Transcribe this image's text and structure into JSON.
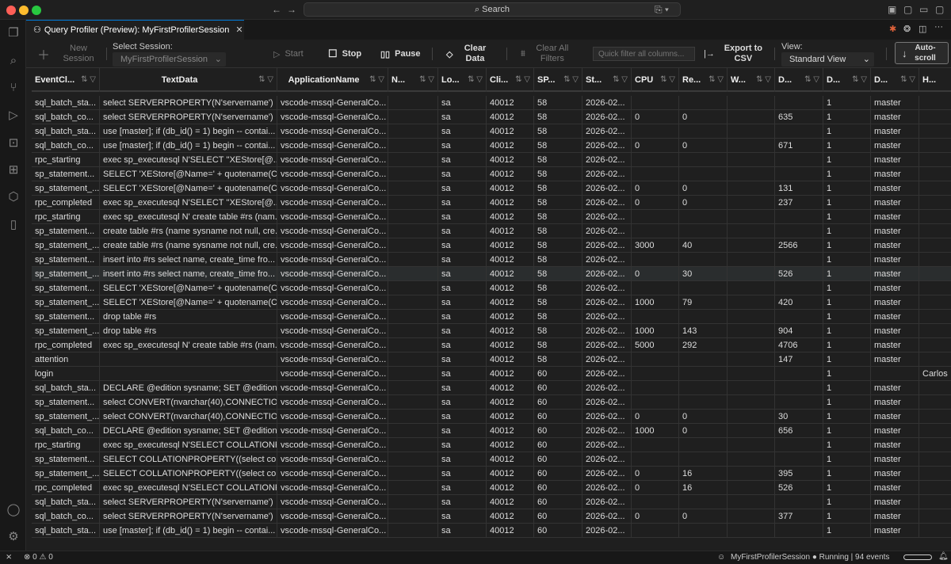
{
  "window": {
    "search_label": "Search"
  },
  "tab": {
    "title": "Query Profiler (Preview): MyFirstProfilerSession"
  },
  "toolbar": {
    "new_session": "New Session",
    "select_session_label": "Select Session:",
    "session_value": "MyFirstProfilerSession",
    "start": "Start",
    "stop": "Stop",
    "pause": "Pause",
    "clear_data": "Clear Data",
    "clear_filters": "Clear All Filters",
    "quick_filter_placeholder": "Quick filter all columns...",
    "export": "Export to CSV",
    "view_label": "View:",
    "view_value": "Standard View",
    "autoscroll": "Auto-scroll"
  },
  "columns": [
    "EventCl...",
    "TextData",
    "ApplicationName",
    "N...",
    "Lo...",
    "Cli...",
    "SP...",
    "St...",
    "CPU",
    "Re...",
    "W...",
    "D...",
    "D...",
    "D...",
    "H..."
  ],
  "rows": [
    [
      "sql_batch_sta...",
      "select SERVERPROPERTY(N'servername')",
      "vscode-mssql-GeneralCo...",
      "",
      "sa",
      "40012",
      "58",
      "2026-02...",
      "",
      "",
      "",
      "",
      "1",
      "master",
      ""
    ],
    [
      "sql_batch_co...",
      "select SERVERPROPERTY(N'servername')",
      "vscode-mssql-GeneralCo...",
      "",
      "sa",
      "40012",
      "58",
      "2026-02...",
      "0",
      "0",
      "",
      "635",
      "1",
      "master",
      ""
    ],
    [
      "sql_batch_sta...",
      "use [master]; if (db_id() = 1) begin -- contai...",
      "vscode-mssql-GeneralCo...",
      "",
      "sa",
      "40012",
      "58",
      "2026-02...",
      "",
      "",
      "",
      "",
      "1",
      "master",
      ""
    ],
    [
      "sql_batch_co...",
      "use [master]; if (db_id() = 1) begin -- contai...",
      "vscode-mssql-GeneralCo...",
      "",
      "sa",
      "40012",
      "58",
      "2026-02...",
      "0",
      "0",
      "",
      "671",
      "1",
      "master",
      ""
    ],
    [
      "rpc_starting",
      "exec sp_executesql N'SELECT ''XEStore[@...",
      "vscode-mssql-GeneralCo...",
      "",
      "sa",
      "40012",
      "58",
      "2026-02...",
      "",
      "",
      "",
      "",
      "1",
      "master",
      ""
    ],
    [
      "sp_statement...",
      "SELECT 'XEStore[@Name=' + quotename(C...",
      "vscode-mssql-GeneralCo...",
      "",
      "sa",
      "40012",
      "58",
      "2026-02...",
      "",
      "",
      "",
      "",
      "1",
      "master",
      ""
    ],
    [
      "sp_statement_...",
      "SELECT 'XEStore[@Name=' + quotename(C...",
      "vscode-mssql-GeneralCo...",
      "",
      "sa",
      "40012",
      "58",
      "2026-02...",
      "0",
      "0",
      "",
      "131",
      "1",
      "master",
      ""
    ],
    [
      "rpc_completed",
      "exec sp_executesql N'SELECT ''XEStore[@...",
      "vscode-mssql-GeneralCo...",
      "",
      "sa",
      "40012",
      "58",
      "2026-02...",
      "0",
      "0",
      "",
      "237",
      "1",
      "master",
      ""
    ],
    [
      "rpc_starting",
      "exec sp_executesql N' create table #rs (nam...",
      "vscode-mssql-GeneralCo...",
      "",
      "sa",
      "40012",
      "58",
      "2026-02...",
      "",
      "",
      "",
      "",
      "1",
      "master",
      ""
    ],
    [
      "sp_statement...",
      "create table #rs (name sysname not null, cre...",
      "vscode-mssql-GeneralCo...",
      "",
      "sa",
      "40012",
      "58",
      "2026-02...",
      "",
      "",
      "",
      "",
      "1",
      "master",
      ""
    ],
    [
      "sp_statement_...",
      "create table #rs (name sysname not null, cre...",
      "vscode-mssql-GeneralCo...",
      "",
      "sa",
      "40012",
      "58",
      "2026-02...",
      "3000",
      "40",
      "",
      "2566",
      "1",
      "master",
      ""
    ],
    [
      "sp_statement...",
      "insert into #rs select name, create_time fro...",
      "vscode-mssql-GeneralCo...",
      "",
      "sa",
      "40012",
      "58",
      "2026-02...",
      "",
      "",
      "",
      "",
      "1",
      "master",
      ""
    ],
    [
      "sp_statement_...",
      "insert into #rs select name, create_time fro...",
      "vscode-mssql-GeneralCo...",
      "",
      "sa",
      "40012",
      "58",
      "2026-02...",
      "0",
      "30",
      "",
      "526",
      "1",
      "master",
      ""
    ],
    [
      "sp_statement...",
      "SELECT 'XEStore[@Name=' + quotename(C...",
      "vscode-mssql-GeneralCo...",
      "",
      "sa",
      "40012",
      "58",
      "2026-02...",
      "",
      "",
      "",
      "",
      "1",
      "master",
      ""
    ],
    [
      "sp_statement_...",
      "SELECT 'XEStore[@Name=' + quotename(C...",
      "vscode-mssql-GeneralCo...",
      "",
      "sa",
      "40012",
      "58",
      "2026-02...",
      "1000",
      "79",
      "",
      "420",
      "1",
      "master",
      ""
    ],
    [
      "sp_statement...",
      "drop table #rs",
      "vscode-mssql-GeneralCo...",
      "",
      "sa",
      "40012",
      "58",
      "2026-02...",
      "",
      "",
      "",
      "",
      "1",
      "master",
      ""
    ],
    [
      "sp_statement_...",
      "drop table #rs",
      "vscode-mssql-GeneralCo...",
      "",
      "sa",
      "40012",
      "58",
      "2026-02...",
      "1000",
      "143",
      "",
      "904",
      "1",
      "master",
      ""
    ],
    [
      "rpc_completed",
      "exec sp_executesql N' create table #rs (nam...",
      "vscode-mssql-GeneralCo...",
      "",
      "sa",
      "40012",
      "58",
      "2026-02...",
      "5000",
      "292",
      "",
      "4706",
      "1",
      "master",
      ""
    ],
    [
      "attention",
      "",
      "vscode-mssql-GeneralCo...",
      "",
      "sa",
      "40012",
      "58",
      "2026-02...",
      "",
      "",
      "",
      "147",
      "1",
      "master",
      ""
    ],
    [
      "login",
      "",
      "vscode-mssql-GeneralCo...",
      "",
      "sa",
      "40012",
      "60",
      "2026-02...",
      "",
      "",
      "",
      "",
      "1",
      "",
      "Carlos"
    ],
    [
      "sql_batch_sta...",
      "DECLARE @edition sysname; SET @edition ...",
      "vscode-mssql-GeneralCo...",
      "",
      "sa",
      "40012",
      "60",
      "2026-02...",
      "",
      "",
      "",
      "",
      "1",
      "master",
      ""
    ],
    [
      "sp_statement...",
      "select CONVERT(nvarchar(40),CONNECTIO...",
      "vscode-mssql-GeneralCo...",
      "",
      "sa",
      "40012",
      "60",
      "2026-02...",
      "",
      "",
      "",
      "",
      "1",
      "master",
      ""
    ],
    [
      "sp_statement_...",
      "select CONVERT(nvarchar(40),CONNECTIO...",
      "vscode-mssql-GeneralCo...",
      "",
      "sa",
      "40012",
      "60",
      "2026-02...",
      "0",
      "0",
      "",
      "30",
      "1",
      "master",
      ""
    ],
    [
      "sql_batch_co...",
      "DECLARE @edition sysname; SET @edition ...",
      "vscode-mssql-GeneralCo...",
      "",
      "sa",
      "40012",
      "60",
      "2026-02...",
      "1000",
      "0",
      "",
      "656",
      "1",
      "master",
      ""
    ],
    [
      "rpc_starting",
      "exec sp_executesql N'SELECT COLLATIONP...",
      "vscode-mssql-GeneralCo...",
      "",
      "sa",
      "40012",
      "60",
      "2026-02...",
      "",
      "",
      "",
      "",
      "1",
      "master",
      ""
    ],
    [
      "sp_statement...",
      "SELECT COLLATIONPROPERTY((select coll...",
      "vscode-mssql-GeneralCo...",
      "",
      "sa",
      "40012",
      "60",
      "2026-02...",
      "",
      "",
      "",
      "",
      "1",
      "master",
      ""
    ],
    [
      "sp_statement_...",
      "SELECT COLLATIONPROPERTY((select coll...",
      "vscode-mssql-GeneralCo...",
      "",
      "sa",
      "40012",
      "60",
      "2026-02...",
      "0",
      "16",
      "",
      "395",
      "1",
      "master",
      ""
    ],
    [
      "rpc_completed",
      "exec sp_executesql N'SELECT COLLATIONP...",
      "vscode-mssql-GeneralCo...",
      "",
      "sa",
      "40012",
      "60",
      "2026-02...",
      "0",
      "16",
      "",
      "526",
      "1",
      "master",
      ""
    ],
    [
      "sql_batch_sta...",
      "select SERVERPROPERTY(N'servername')",
      "vscode-mssql-GeneralCo...",
      "",
      "sa",
      "40012",
      "60",
      "2026-02...",
      "",
      "",
      "",
      "",
      "1",
      "master",
      ""
    ],
    [
      "sql_batch_co...",
      "select SERVERPROPERTY(N'servername')",
      "vscode-mssql-GeneralCo...",
      "",
      "sa",
      "40012",
      "60",
      "2026-02...",
      "0",
      "0",
      "",
      "377",
      "1",
      "master",
      ""
    ],
    [
      "sql_batch_sta...",
      "use [master]; if (db_id() = 1) begin -- contai...",
      "vscode-mssql-GeneralCo...",
      "",
      "sa",
      "40012",
      "60",
      "2026-02...",
      "",
      "",
      "",
      "",
      "1",
      "master",
      ""
    ]
  ],
  "highlighted_row": 12,
  "status": {
    "errors": "0",
    "warnings": "0",
    "session": "MyFirstProfilerSession",
    "state": "Running | 94 events"
  }
}
